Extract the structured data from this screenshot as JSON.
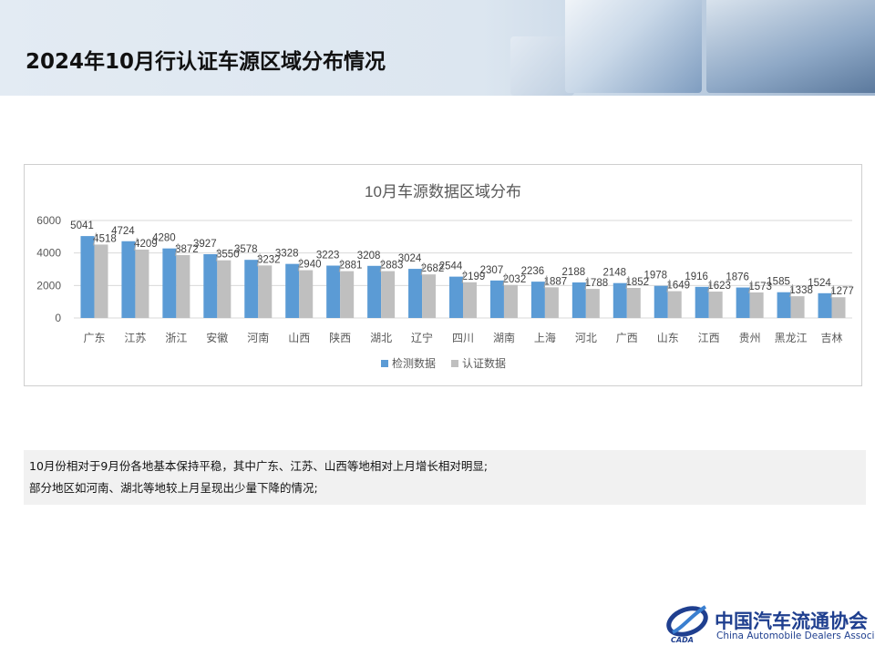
{
  "page": {
    "title": "2024年10月行认证车源区域分布情况"
  },
  "notes": [
    "10月份相对于9月份各地基本保持平稳，其中广东、江苏、山西等地相对上月增长相对明显;",
    "部分地区如河南、湖北等地较上月呈现出少量下降的情况;"
  ],
  "logo": {
    "name_cn": "中国汽车流通协会",
    "name_en": "China Automobile Dealers Association",
    "mark_text": "CADA",
    "color": "#1f3f8f"
  },
  "chart_data": {
    "type": "bar",
    "title": "10月车源数据区域分布",
    "categories": [
      "广东",
      "江苏",
      "浙江",
      "安徽",
      "河南",
      "山西",
      "陕西",
      "湖北",
      "辽宁",
      "四川",
      "湖南",
      "上海",
      "河北",
      "广西",
      "山东",
      "江西",
      "贵州",
      "黑龙江",
      "吉林"
    ],
    "series": [
      {
        "name": "检测数据",
        "color": "#5b9bd5",
        "values": [
          5041,
          4724,
          4280,
          3927,
          3578,
          3328,
          3223,
          3208,
          3024,
          2544,
          2307,
          2236,
          2188,
          2148,
          1978,
          1916,
          1876,
          1585,
          1524
        ]
      },
      {
        "name": "认证数据",
        "color": "#bfbfbf",
        "values": [
          4518,
          4209,
          3872,
          3550,
          3232,
          2940,
          2881,
          2883,
          2682,
          2199,
          2032,
          1887,
          1788,
          1852,
          1649,
          1623,
          1573,
          1338,
          1277
        ]
      }
    ],
    "ylim": [
      0,
      6000
    ],
    "yticks": [
      0,
      2000,
      4000,
      6000
    ],
    "grid": true,
    "legend": "bottom",
    "data_labels": true
  }
}
